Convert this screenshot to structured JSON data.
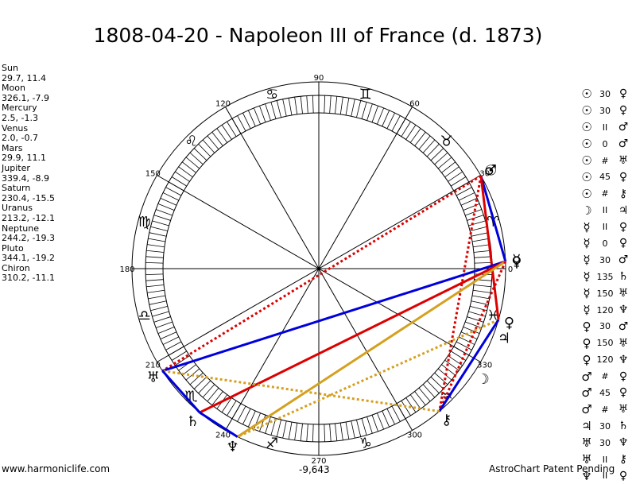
{
  "title": "1808-04-20 - Napoleon III of France (d. 1873)",
  "planets": [
    {
      "name": "Sun",
      "value": "29.7, 11.4"
    },
    {
      "name": "Moon",
      "value": "326.1, -7.9"
    },
    {
      "name": "Mercury",
      "value": "2.5, -1.3"
    },
    {
      "name": "Venus",
      "value": "2.0, -0.7"
    },
    {
      "name": "Mars",
      "value": "29.9, 11.1"
    },
    {
      "name": "Jupiter",
      "value": "339.4, -8.9"
    },
    {
      "name": "Saturn",
      "value": "230.4, -15.5"
    },
    {
      "name": "Uranus",
      "value": "213.2, -12.1"
    },
    {
      "name": "Neptune",
      "value": "244.2, -19.3"
    },
    {
      "name": "Pluto",
      "value": "344.1, -19.2"
    },
    {
      "name": "Chiron",
      "value": "310.2, -11.1"
    }
  ],
  "aspects": [
    {
      "a": "☉",
      "sym": "30",
      "b": "♀"
    },
    {
      "a": "☉",
      "sym": "30",
      "b": "♀"
    },
    {
      "a": "☉",
      "sym": "II",
      "b": "♂"
    },
    {
      "a": "☉",
      "sym": "0",
      "b": "♂"
    },
    {
      "a": "☉",
      "sym": "#",
      "b": "♅"
    },
    {
      "a": "☉",
      "sym": "45",
      "b": "♀"
    },
    {
      "a": "☉",
      "sym": "#",
      "b": "⚷"
    },
    {
      "a": "☽",
      "sym": "II",
      "b": "♃"
    },
    {
      "a": "☿",
      "sym": "II",
      "b": "♀"
    },
    {
      "a": "☿",
      "sym": "0",
      "b": "♀"
    },
    {
      "a": "☿",
      "sym": "30",
      "b": "♂"
    },
    {
      "a": "☿",
      "sym": "135",
      "b": "♄"
    },
    {
      "a": "☿",
      "sym": "150",
      "b": "♅"
    },
    {
      "a": "☿",
      "sym": "120",
      "b": "♆"
    },
    {
      "a": "♀",
      "sym": "30",
      "b": "♂"
    },
    {
      "a": "♀",
      "sym": "150",
      "b": "♅"
    },
    {
      "a": "♀",
      "sym": "120",
      "b": "♆"
    },
    {
      "a": "♂",
      "sym": "#",
      "b": "♀"
    },
    {
      "a": "♂",
      "sym": "45",
      "b": "♀"
    },
    {
      "a": "♂",
      "sym": "#",
      "b": "♅"
    },
    {
      "a": "♃",
      "sym": "30",
      "b": "♄"
    },
    {
      "a": "♅",
      "sym": "30",
      "b": "♆"
    },
    {
      "a": "♅",
      "sym": "II",
      "b": "⚷"
    },
    {
      "a": "♆",
      "sym": "II",
      "b": "♀"
    }
  ],
  "wheel": {
    "degree_labels": [
      "0",
      "30",
      "60",
      "90",
      "120",
      "150",
      "180",
      "210",
      "240",
      "270",
      "300",
      "330"
    ],
    "zodiac_signs": [
      "♈",
      "♉",
      "♊",
      "♋",
      "♌",
      "♍",
      "♎",
      "♏",
      "♐",
      "♑",
      "♒",
      "♓"
    ],
    "planet_glyphs": [
      {
        "glyph": "☉",
        "lon": 29.7
      },
      {
        "glyph": "♂",
        "lon": 29.9
      },
      {
        "glyph": "☽",
        "lon": 326.1
      },
      {
        "glyph": "☿",
        "lon": 2.5
      },
      {
        "glyph": "♀",
        "lon": 2.0
      },
      {
        "glyph": "♃",
        "lon": 339.4
      },
      {
        "glyph": "♄",
        "lon": 230.4
      },
      {
        "glyph": "♅",
        "lon": 213.2
      },
      {
        "glyph": "♆",
        "lon": 244.2
      },
      {
        "glyph": "♀",
        "lon": 344.1
      },
      {
        "glyph": "⚷",
        "lon": 310.2
      }
    ],
    "aspect_lines": [
      {
        "from": 29.8,
        "to": 2.2,
        "color": "#0000dd",
        "style": "solid"
      },
      {
        "from": 29.8,
        "to": 344.1,
        "color": "#dd0000",
        "style": "solid"
      },
      {
        "from": 29.8,
        "to": 310.2,
        "color": "#dd0000",
        "style": "dotted"
      },
      {
        "from": 29.8,
        "to": 213.2,
        "color": "#dd0000",
        "style": "dotted"
      },
      {
        "from": 2.2,
        "to": 213.2,
        "color": "#0000dd",
        "style": "solid"
      },
      {
        "from": 2.2,
        "to": 230.4,
        "color": "#dd0000",
        "style": "solid"
      },
      {
        "from": 2.2,
        "to": 244.2,
        "color": "#d4a020",
        "style": "solid"
      },
      {
        "from": 2.2,
        "to": 310.2,
        "color": "#dd0000",
        "style": "dotted"
      },
      {
        "from": 344.1,
        "to": 244.2,
        "color": "#d4a020",
        "style": "dotted"
      },
      {
        "from": 344.1,
        "to": 310.2,
        "color": "#0000dd",
        "style": "solid"
      },
      {
        "from": 310.2,
        "to": 213.2,
        "color": "#d4a020",
        "style": "dotted"
      },
      {
        "from": 230.4,
        "to": 213.2,
        "color": "#0000dd",
        "style": "solid"
      },
      {
        "from": 244.2,
        "to": 230.4,
        "color": "#0000dd",
        "style": "solid"
      }
    ]
  },
  "footer": {
    "left": "www.harmoniclife.com",
    "center": "-9,643",
    "right": "AstroChart Patent Pending"
  }
}
